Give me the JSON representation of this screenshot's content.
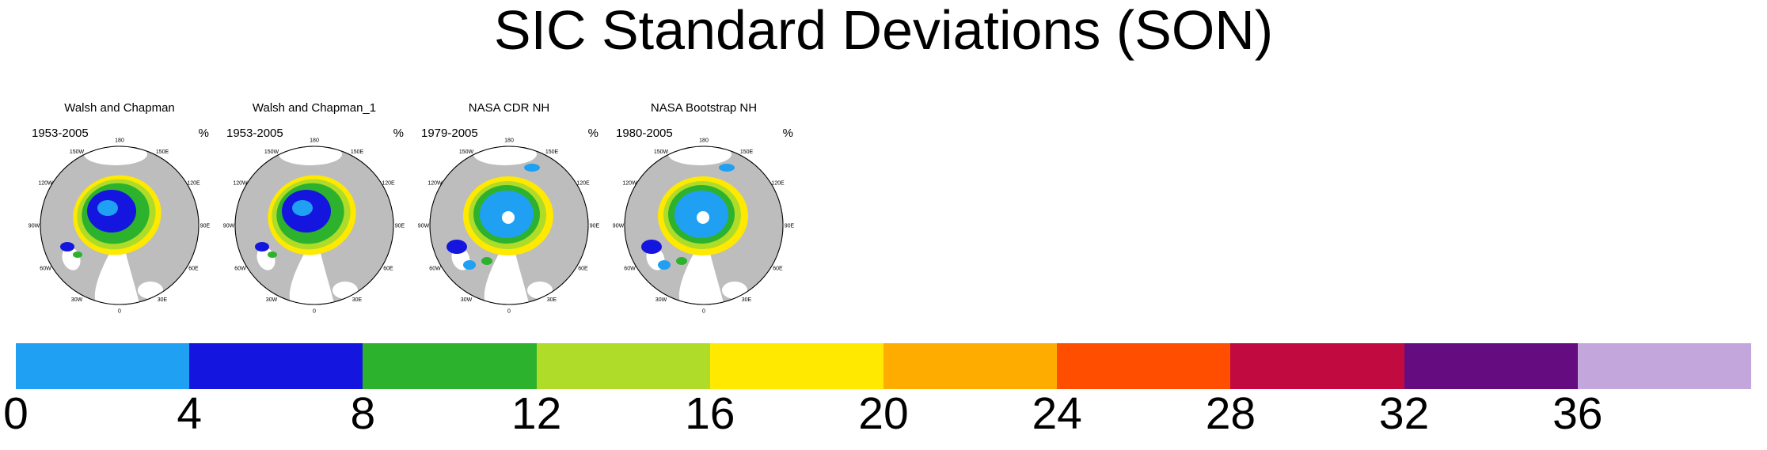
{
  "chart_data": {
    "type": "heatmap",
    "title": "SIC Standard Deviations (SON)",
    "units": "%",
    "legend_position": "bottom",
    "panels": [
      {
        "title": "Walsh and Chapman",
        "period": "1953-2005",
        "units": "%",
        "pole_hole": false
      },
      {
        "title": "Walsh and Chapman_1",
        "period": "1953-2005",
        "units": "%",
        "pole_hole": false
      },
      {
        "title": "NASA CDR NH",
        "period": "1979-2005",
        "units": "%",
        "pole_hole": true
      },
      {
        "title": "NASA Bootstrap NH",
        "period": "1980-2005",
        "units": "%",
        "pole_hole": true
      }
    ],
    "map": {
      "projection_labels": [
        "0",
        "30E",
        "60E",
        "90E",
        "120E",
        "150E",
        "180",
        "150W",
        "120W",
        "90W",
        "60W",
        "30W"
      ],
      "land_color": "#BDBDBD",
      "ocean_color": "#FFFFFF",
      "outline_color": "#000000"
    },
    "colorbar": {
      "orientation": "horizontal",
      "levels": [
        0,
        4,
        8,
        12,
        16,
        20,
        24,
        28,
        32,
        36,
        40
      ],
      "tick_labels": [
        "0",
        "4",
        "8",
        "12",
        "16",
        "20",
        "24",
        "28",
        "32",
        "36"
      ],
      "colors": [
        "#1FA0F2",
        "#1515E0",
        "#2DB22D",
        "#AEDC28",
        "#FFE900",
        "#FFAC00",
        "#FF4E00",
        "#C00A40",
        "#650D80",
        "#C3A6DB"
      ]
    }
  }
}
